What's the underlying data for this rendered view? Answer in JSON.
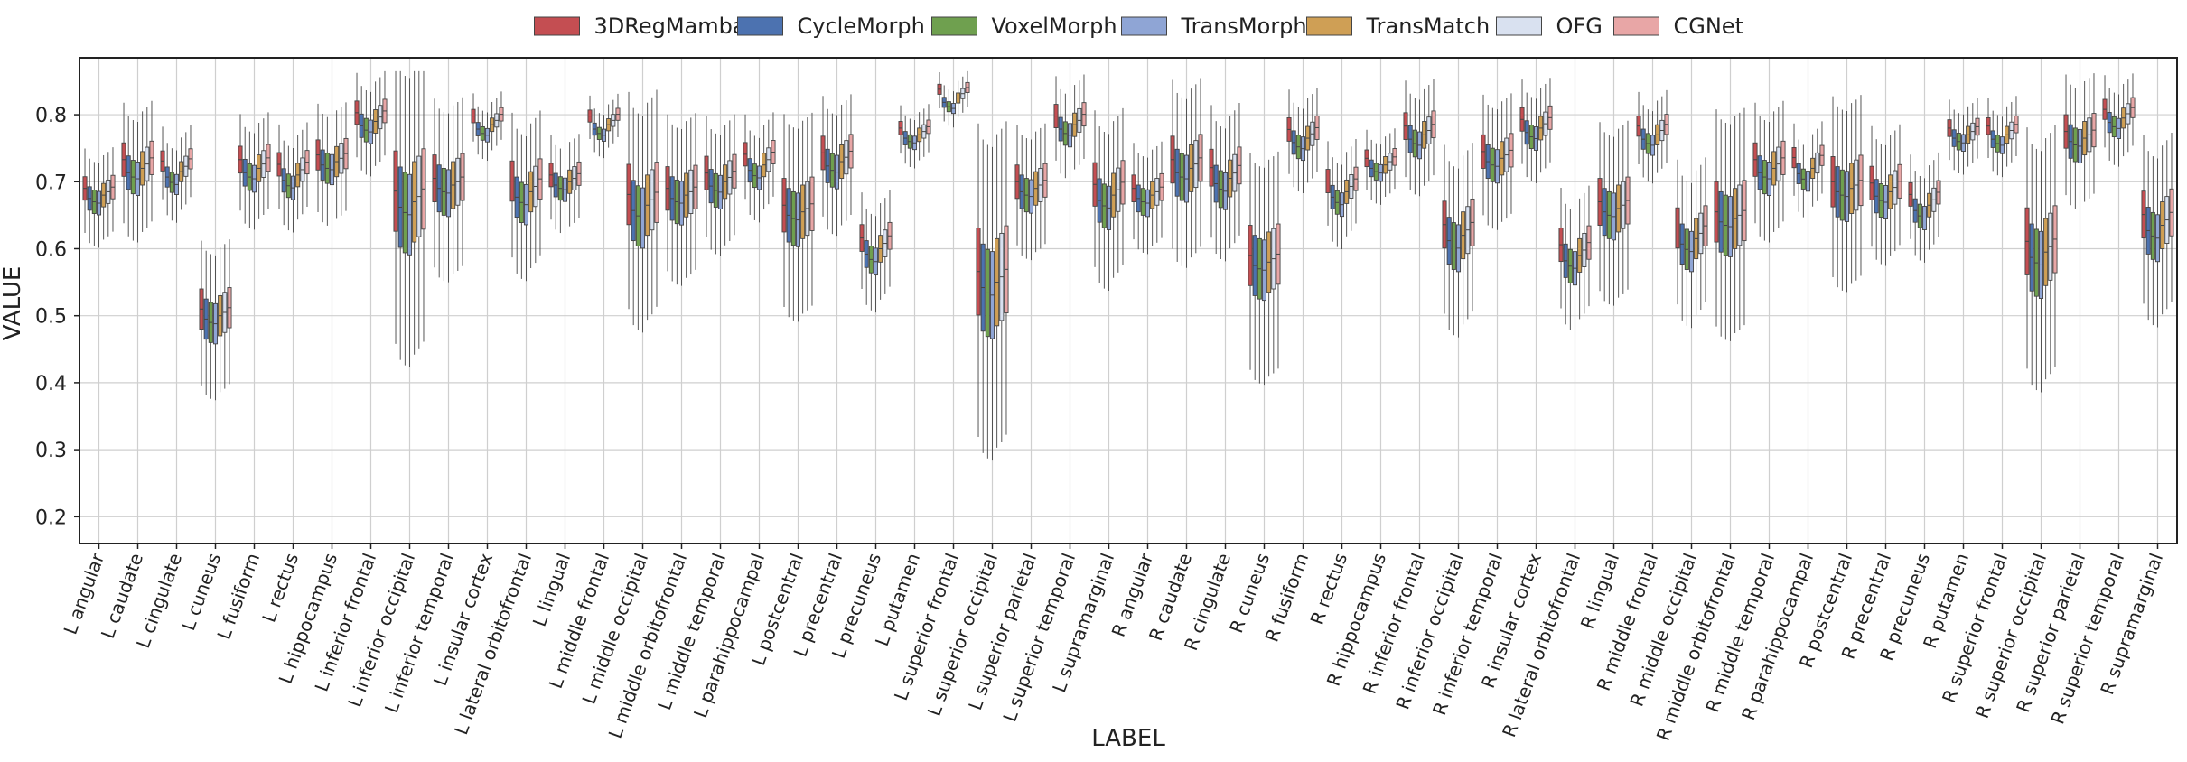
{
  "chart_data": {
    "type": "box",
    "xlabel": "LABEL",
    "ylabel": "VALUE",
    "ylim": [
      0.16,
      0.885
    ],
    "yticks": [
      0.2,
      0.3,
      0.4,
      0.5,
      0.6,
      0.7,
      0.8
    ],
    "grid": true,
    "legend_position": "top-center",
    "categories": [
      "L angular",
      "L caudate",
      "L cingulate",
      "L cuneus",
      "L fusiform",
      "L rectus",
      "L hippocampus",
      "L inferior frontal",
      "L inferior occipital",
      "L inferior temporal",
      "L insular cortex",
      "L lateral orbitofrontal",
      "L lingual",
      "L middle frontal",
      "L middle occipital",
      "L middle orbitofrontal",
      "L middle temporal",
      "L parahippocampal",
      "L postcentral",
      "L precentral",
      "L precuneus",
      "L putamen",
      "L superior frontal",
      "L superior occipital",
      "L superior parietal",
      "L superior temporal",
      "L supramarginal",
      "R angular",
      "R caudate",
      "R cingulate",
      "R cuneus",
      "R fusiform",
      "R rectus",
      "R hippocampus",
      "R inferior frontal",
      "R inferior occipital",
      "R inferior temporal",
      "R insular cortex",
      "R lateral orbitofrontal",
      "R lingual",
      "R middle frontal",
      "R middle occipital",
      "R middle orbitofrontal",
      "R middle temporal",
      "R parahippocampal",
      "R postcentral",
      "R precentral",
      "R precuneus",
      "R putamen",
      "R superior frontal",
      "R superior occipital",
      "R superior parietal",
      "R superior temporal",
      "R supramarginal"
    ],
    "series": [
      {
        "name": "3DRegMamba",
        "color": "#C44E52"
      },
      {
        "name": "CycleMorph",
        "color": "#4C72B0"
      },
      {
        "name": "VoxelMorph",
        "color": "#6FA04F"
      },
      {
        "name": "TransMorph",
        "color": "#8FA5D5"
      },
      {
        "name": "TransMatch",
        "color": "#CF9F55"
      },
      {
        "name": "OFG",
        "color": "#D9E1F0"
      },
      {
        "name": "CGNet",
        "color": "#E8A6A6"
      }
    ],
    "region_medians": [
      0.68,
      0.72,
      0.715,
      0.5,
      0.72,
      0.71,
      0.73,
      0.79,
      0.67,
      0.695,
      0.785,
      0.685,
      0.7,
      0.785,
      0.665,
      0.68,
      0.7,
      0.725,
      0.655,
      0.73,
      0.6,
      0.77,
      0.825,
      0.55,
      0.69,
      0.785,
      0.68,
      0.68,
      0.72,
      0.705,
      0.58,
      0.765,
      0.685,
      0.725,
      0.77,
      0.62,
      0.735,
      0.78,
      0.59,
      0.66,
      0.77,
      0.615,
      0.645,
      0.72,
      0.72,
      0.69,
      0.685,
      0.665,
      0.77,
      0.77,
      0.595,
      0.765,
      0.795,
      0.635
    ],
    "region_iqr": [
      0.035,
      0.05,
      0.03,
      0.06,
      0.04,
      0.035,
      0.045,
      0.035,
      0.12,
      0.07,
      0.02,
      0.06,
      0.035,
      0.018,
      0.09,
      0.065,
      0.05,
      0.035,
      0.08,
      0.05,
      0.04,
      0.02,
      0.015,
      0.13,
      0.05,
      0.035,
      0.065,
      0.04,
      0.07,
      0.055,
      0.09,
      0.035,
      0.035,
      0.025,
      0.04,
      0.07,
      0.05,
      0.035,
      0.05,
      0.07,
      0.03,
      0.06,
      0.09,
      0.05,
      0.03,
      0.075,
      0.05,
      0.035,
      0.025,
      0.025,
      0.1,
      0.05,
      0.03,
      0.07
    ],
    "series_offsets": [
      0.01,
      -0.005,
      -0.01,
      -0.012,
      0.0,
      0.005,
      0.012
    ]
  }
}
